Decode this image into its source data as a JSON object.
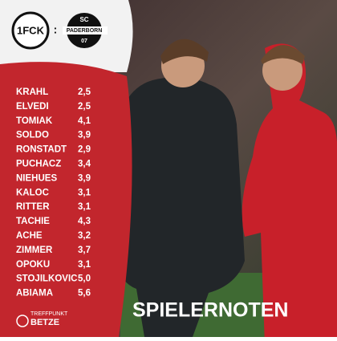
{
  "header": {
    "home_logo": "1FCK",
    "away_logo_top": "SC",
    "away_logo_name": "PADERBORN",
    "away_logo_year": "07"
  },
  "players": [
    {
      "name": "KRAHL",
      "grade": "2,5"
    },
    {
      "name": "ELVEDI",
      "grade": "2,5"
    },
    {
      "name": "TOMIAK",
      "grade": "4,1"
    },
    {
      "name": "SOLDO",
      "grade": "3,9"
    },
    {
      "name": "RONSTADT",
      "grade": "2,9"
    },
    {
      "name": "PUCHACZ",
      "grade": "3,4"
    },
    {
      "name": "NIEHUES",
      "grade": "3,9"
    },
    {
      "name": "KALOC",
      "grade": "3,1"
    },
    {
      "name": "RITTER",
      "grade": "3,1"
    },
    {
      "name": "TACHIE",
      "grade": "4,3"
    },
    {
      "name": "ACHE",
      "grade": "3,2"
    },
    {
      "name": "ZIMMER",
      "grade": "3,7"
    },
    {
      "name": "OPOKU",
      "grade": "3,1"
    },
    {
      "name": "STOJILKOVIC",
      "grade": "5,0"
    },
    {
      "name": "ABIAMA",
      "grade": "5,6"
    }
  ],
  "title": "SPIELERNOTEN",
  "brand": {
    "line1": "TREFFPUNKT",
    "line2": "BETZE"
  }
}
